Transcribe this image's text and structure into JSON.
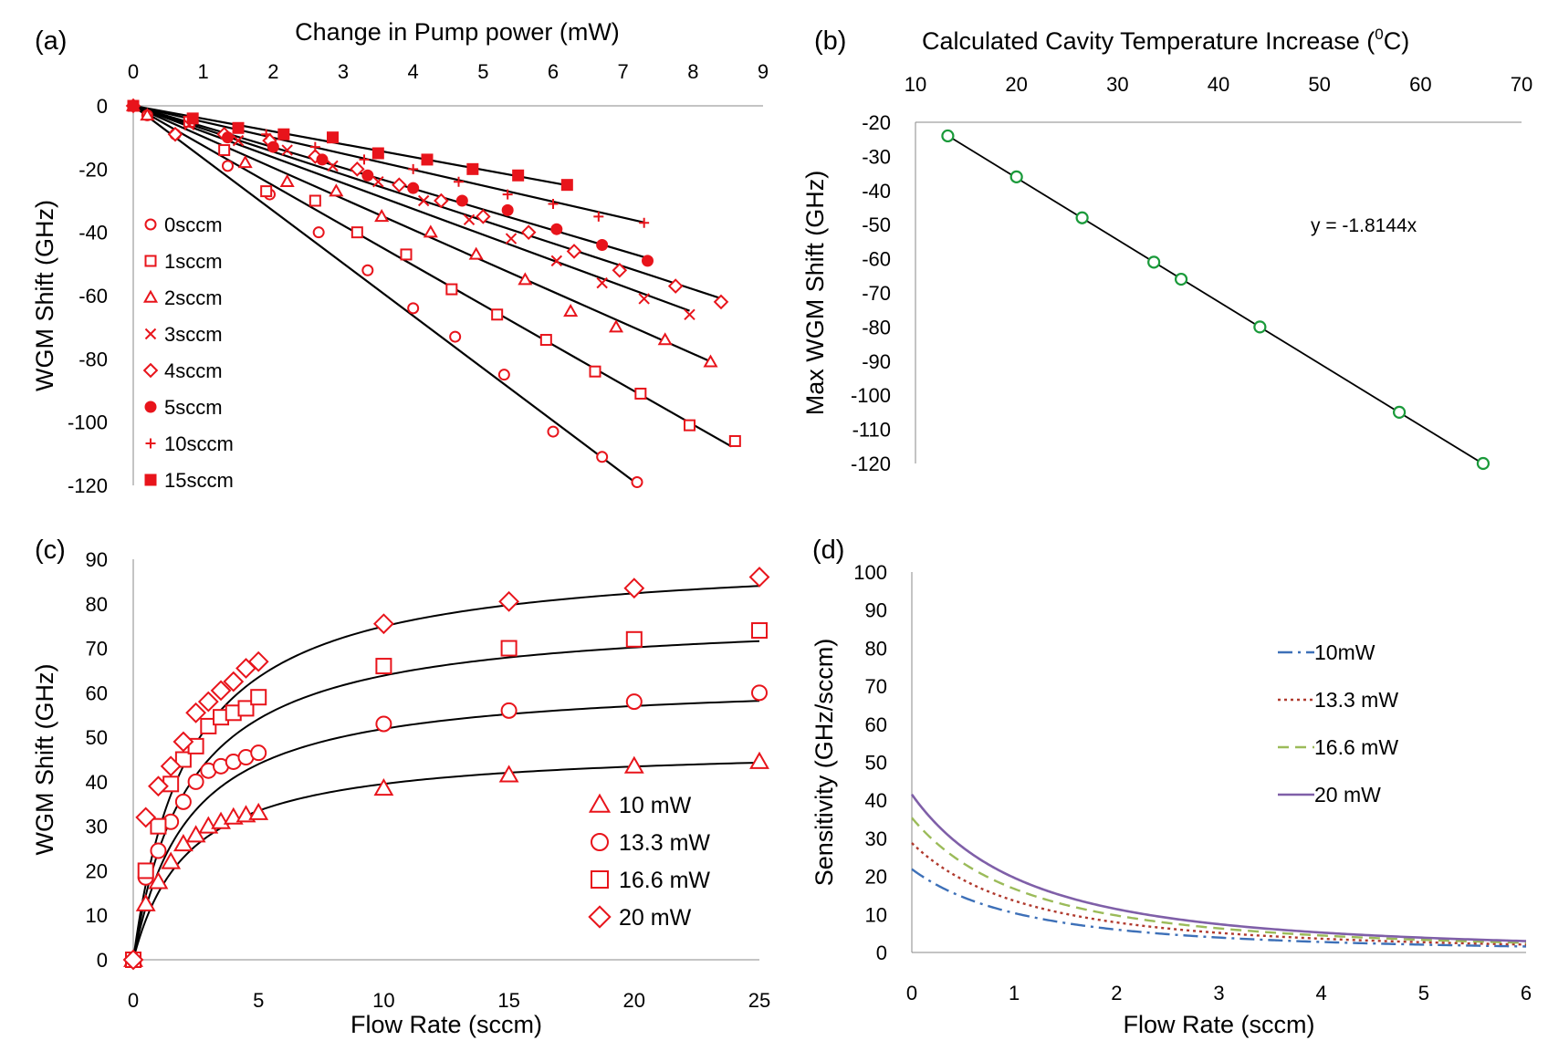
{
  "chart_data": [
    {
      "panel": "(a)",
      "type": "scatter",
      "xlabel": "Change in Pump power (mW)",
      "ylabel": "WGM Shift (GHz)",
      "xlim": [
        0,
        9
      ],
      "ylim": [
        -120,
        0
      ],
      "xticks": [
        "0",
        "1",
        "2",
        "3",
        "4",
        "5",
        "6",
        "7",
        "8",
        "9"
      ],
      "yticks": [
        "0",
        "-20",
        "-40",
        "-60",
        "-80",
        "-100",
        "-120"
      ],
      "xaxis_position": "top",
      "legend_position": "left",
      "series": [
        {
          "name": "0sccm",
          "marker": "circle-open",
          "slope": -16.6,
          "fit_end": 7.2,
          "x": [
            0,
            0.2,
            0.6,
            1.35,
            1.95,
            2.65,
            3.35,
            4.0,
            4.6,
            5.3,
            6.0,
            6.7,
            7.2
          ],
          "y": [
            0,
            -3,
            -9,
            -19,
            -28,
            -40,
            -52,
            -64,
            -73,
            -85,
            -103,
            -111,
            -119
          ]
        },
        {
          "name": "1sccm",
          "marker": "square-open",
          "slope": -12.6,
          "fit_end": 8.55,
          "x": [
            0,
            0.8,
            1.3,
            1.9,
            2.6,
            3.2,
            3.9,
            4.55,
            5.2,
            5.9,
            6.6,
            7.25,
            7.95,
            8.6
          ],
          "y": [
            0,
            -5,
            -14,
            -27,
            -30,
            -40,
            -47,
            -58,
            -66,
            -74,
            -84,
            -91,
            -101,
            -106
          ]
        },
        {
          "name": "2sccm",
          "marker": "triangle-open",
          "slope": -9.8,
          "fit_end": 8.3,
          "x": [
            0,
            0.2,
            1.6,
            2.2,
            2.9,
            3.55,
            4.25,
            4.9,
            5.6,
            6.25,
            6.9,
            7.6,
            8.25
          ],
          "y": [
            0,
            -3,
            -18,
            -24,
            -27,
            -35,
            -40,
            -47,
            -55,
            -65,
            -70,
            -74,
            -81
          ]
        },
        {
          "name": "3sccm",
          "marker": "x",
          "slope": -8.15,
          "fit_end": 7.95,
          "x": [
            0,
            0.8,
            1.5,
            2.2,
            2.85,
            3.5,
            4.15,
            4.8,
            5.4,
            6.05,
            6.7,
            7.3,
            7.95
          ],
          "y": [
            0,
            -6,
            -11,
            -14,
            -19,
            -24,
            -30,
            -36,
            -42,
            -49,
            -56,
            -61,
            -66
          ]
        },
        {
          "name": "4sccm",
          "marker": "diamond-open",
          "slope": -7.25,
          "fit_end": 8.4,
          "x": [
            0,
            0.6,
            1.3,
            1.95,
            2.6,
            3.2,
            3.8,
            4.4,
            5.0,
            5.65,
            6.3,
            6.95,
            7.75,
            8.4
          ],
          "y": [
            0,
            -9,
            -9,
            -11,
            -16,
            -20,
            -25,
            -30,
            -35,
            -40,
            -46,
            -52,
            -57,
            -62
          ]
        },
        {
          "name": "5sccm",
          "marker": "circle-filled",
          "slope": -6.55,
          "fit_end": 7.35,
          "x": [
            0,
            1.35,
            2.0,
            2.7,
            3.35,
            4.0,
            4.7,
            5.35,
            6.05,
            6.7,
            7.35
          ],
          "y": [
            0,
            -10,
            -13,
            -17,
            -22,
            -26,
            -30,
            -33,
            -39,
            -44,
            -49
          ]
        },
        {
          "name": "10sccm",
          "marker": "plus",
          "slope": -5.05,
          "fit_end": 7.3,
          "x": [
            0,
            1.9,
            2.6,
            3.3,
            4.0,
            4.65,
            5.35,
            6.0,
            6.65,
            7.3
          ],
          "y": [
            0,
            -9,
            -13,
            -17,
            -20,
            -24,
            -28,
            -31,
            -35,
            -37
          ]
        },
        {
          "name": "15sccm",
          "marker": "square-filled",
          "slope": -4.05,
          "fit_end": 6.2,
          "x": [
            0,
            0.85,
            1.5,
            2.15,
            2.85,
            3.5,
            4.2,
            4.85,
            5.5,
            6.2
          ],
          "y": [
            0,
            -4,
            -7,
            -9,
            -10,
            -15,
            -17,
            -20,
            -22,
            -25
          ]
        }
      ]
    },
    {
      "panel": "(b)",
      "type": "scatter",
      "xlabel": "Calculated Cavity Temperature Increase (⁰C)",
      "xlabel_pre": "Calculated Cavity Temperature Increase (",
      "xlabel_sup": "0",
      "xlabel_post": "C)",
      "ylabel": "Max WGM Shift (GHz)",
      "xlim": [
        10,
        70
      ],
      "ylim": [
        -120,
        -20
      ],
      "xticks": [
        "10",
        "20",
        "30",
        "40",
        "50",
        "60",
        "70"
      ],
      "yticks": [
        "-20",
        "-30",
        "-40",
        "-50",
        "-60",
        "-70",
        "-80",
        "-90",
        "-100",
        "-110",
        "-120"
      ],
      "xaxis_position": "top",
      "annotation": "y = -1.8144x",
      "fit_slope": -1.8144,
      "series": [
        {
          "name": "Max WGM Shift",
          "color": "#1a9a3a",
          "x": [
            13.2,
            20,
            26.5,
            33.6,
            36.3,
            44.1,
            57.9,
            66.2
          ],
          "y": [
            -24,
            -36,
            -48,
            -61,
            -66,
            -80,
            -105,
            -120
          ]
        }
      ]
    },
    {
      "panel": "(c)",
      "type": "scatter",
      "xlabel": "Flow Rate (sccm)",
      "ylabel": "WGM Shift (GHz)",
      "xlim": [
        0,
        25
      ],
      "ylim": [
        0,
        90
      ],
      "xticks": [
        "0",
        "5",
        "10",
        "15",
        "20",
        "25"
      ],
      "yticks": [
        "0",
        "10",
        "20",
        "30",
        "40",
        "50",
        "60",
        "70",
        "80",
        "90"
      ],
      "legend_position": "bottom-right",
      "series": [
        {
          "name": "10 mW",
          "marker": "triangle-open",
          "A": 48.2,
          "K": 2.2,
          "x": [
            0,
            0.5,
            1,
            1.5,
            2,
            2.5,
            3,
            3.5,
            4,
            4.5,
            5,
            10,
            15,
            20,
            25
          ],
          "y": [
            0,
            12.5,
            17.5,
            22,
            26,
            28,
            30,
            31,
            32,
            32.5,
            33,
            38.5,
            41.5,
            43.5,
            44.5
          ]
        },
        {
          "name": "13.3 mW",
          "marker": "circle-open",
          "A": 63.3,
          "K": 2.2,
          "x": [
            0,
            0.5,
            1,
            1.5,
            2,
            2.5,
            3,
            3.5,
            4,
            4.5,
            5,
            10,
            15,
            20,
            25
          ],
          "y": [
            0,
            18.5,
            24.5,
            31,
            35.5,
            40,
            42.5,
            43.5,
            44.5,
            45.5,
            46.5,
            53,
            56,
            58,
            60
          ]
        },
        {
          "name": "16.6 mW",
          "marker": "square-open",
          "A": 77.9,
          "K": 2.2,
          "x": [
            0,
            0.5,
            1,
            1.5,
            2,
            2.5,
            3,
            3.5,
            4,
            4.5,
            5,
            10,
            15,
            20,
            25
          ],
          "y": [
            0,
            20,
            30,
            39.5,
            45,
            48,
            52.5,
            54.5,
            55.5,
            56.5,
            59,
            66,
            70,
            72,
            74
          ]
        },
        {
          "name": "20 mW",
          "marker": "diamond-open",
          "A": 91.4,
          "K": 2.2,
          "x": [
            0,
            0.5,
            1,
            1.5,
            2,
            2.5,
            3,
            3.5,
            4,
            4.5,
            5,
            10,
            15,
            20,
            25
          ],
          "y": [
            0,
            32,
            39,
            43.5,
            49,
            55.5,
            58,
            60.5,
            62.5,
            65.5,
            67,
            75.5,
            80.5,
            83.5,
            86
          ]
        }
      ]
    },
    {
      "panel": "(d)",
      "type": "line",
      "xlabel": "Flow Rate (sccm)",
      "ylabel": "Sensitivity (GHz/sccm)",
      "xlim": [
        0,
        6
      ],
      "ylim": [
        0,
        100
      ],
      "xticks": [
        "0",
        "1",
        "2",
        "3",
        "4",
        "5",
        "6"
      ],
      "yticks": [
        "0",
        "10",
        "20",
        "30",
        "40",
        "50",
        "60",
        "70",
        "80",
        "90",
        "100"
      ],
      "legend_position": "top-right",
      "series": [
        {
          "name": "10mW",
          "style": "dash-dot",
          "color": "#3d70b8",
          "A": 48.2,
          "K": 2.2
        },
        {
          "name": "13.3 mW",
          "style": "dotted",
          "color": "#b03a2e",
          "A": 63.3,
          "K": 2.2
        },
        {
          "name": "16.6 mW",
          "style": "dashed",
          "color": "#9bbb59",
          "A": 77.9,
          "K": 2.2
        },
        {
          "name": "20 mW",
          "style": "solid",
          "color": "#7f5fa8",
          "A": 91.4,
          "K": 2.2
        }
      ]
    }
  ]
}
